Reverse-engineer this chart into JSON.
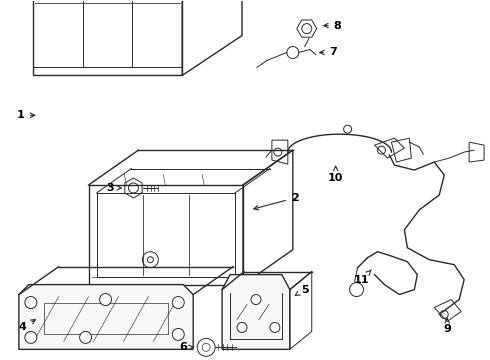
{
  "background_color": "#ffffff",
  "line_color": "#2a2a2a",
  "label_color": "#000000",
  "figsize": [
    4.9,
    3.6
  ],
  "dpi": 100
}
